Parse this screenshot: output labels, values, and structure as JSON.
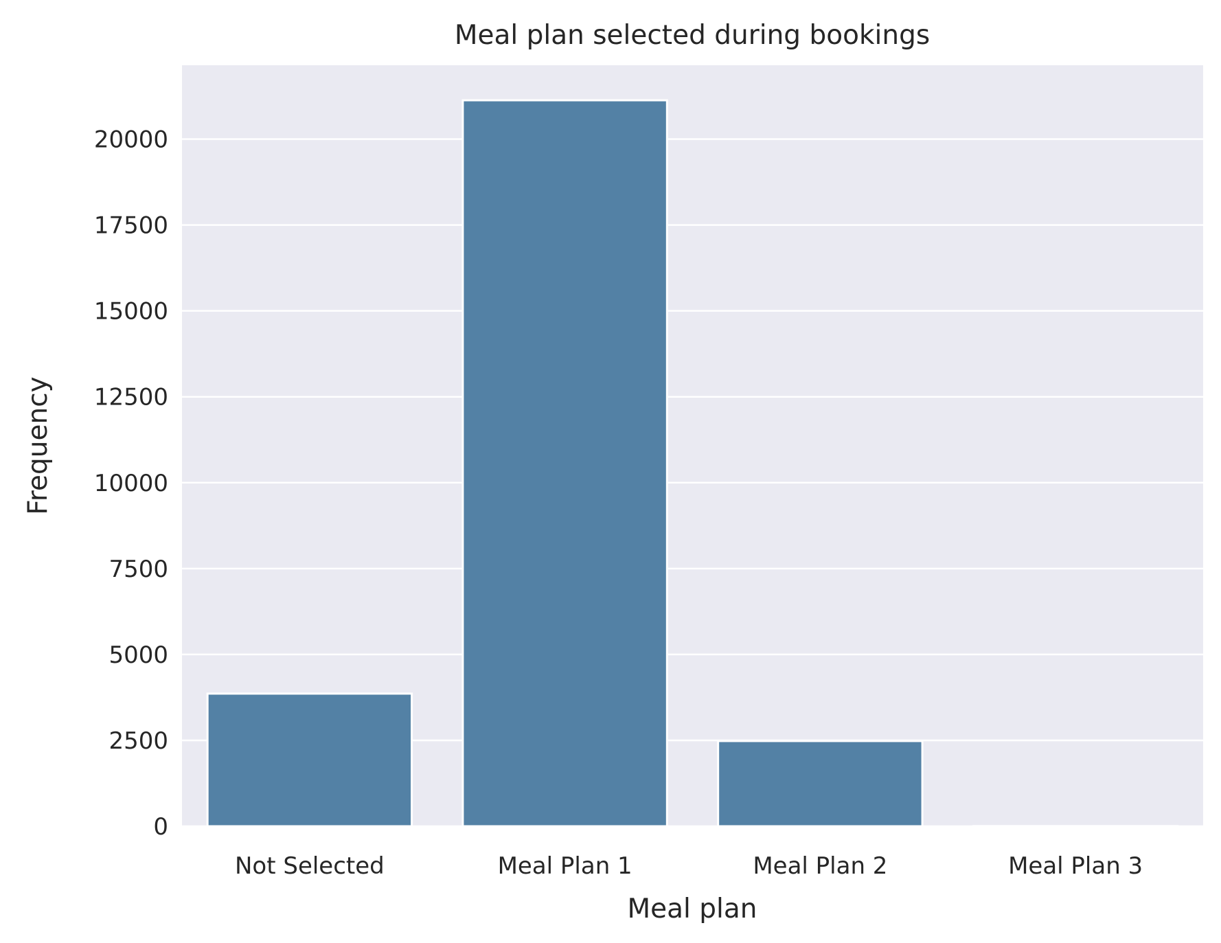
{
  "chart_data": {
    "type": "bar",
    "title": "Meal plan selected during bookings",
    "xlabel": "Meal plan",
    "ylabel": "Frequency",
    "categories": [
      "Not Selected",
      "Meal Plan 1",
      "Meal Plan 2",
      "Meal Plan 3"
    ],
    "values": [
      3860,
      21130,
      2480,
      5
    ],
    "ylim": [
      0,
      22150
    ],
    "yticks": [
      "0",
      "2500",
      "5000",
      "7500",
      "10000",
      "12500",
      "15000",
      "17500",
      "20000"
    ],
    "grid": true,
    "colors": {
      "bar": "#5381a5",
      "plot_background": "#eaeaf2",
      "grid": "#ffffff",
      "text": "#262626"
    }
  }
}
